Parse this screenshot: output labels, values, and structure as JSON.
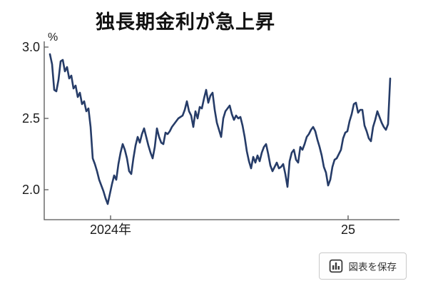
{
  "chart": {
    "title": "独長期金利が急上昇",
    "unit_label": "%"
  },
  "chart_data": {
    "type": "line",
    "title": "独長期金利が急上昇",
    "ylabel": "%",
    "line_color": "#263c68",
    "axis_color": "#555555",
    "grid": false,
    "legend": false,
    "axes": {
      "x_min": 2023.7207,
      "x_max": 2025.2162,
      "y_min": 1.79,
      "y_max": 3.04
    },
    "y_ticks": [
      {
        "value": 3.0,
        "label": "3.0"
      },
      {
        "value": 2.5,
        "label": "2.5"
      },
      {
        "value": 2.0,
        "label": "2.0"
      }
    ],
    "x_ticks": [
      {
        "value": 2024,
        "label": "2024年"
      },
      {
        "value": 2025,
        "label": "25"
      }
    ],
    "x_start": 2023.7447,
    "x_step": 0.009009,
    "values": [
      2.95,
      2.88,
      2.7,
      2.69,
      2.77,
      2.9,
      2.91,
      2.83,
      2.86,
      2.78,
      2.8,
      2.71,
      2.73,
      2.65,
      2.68,
      2.6,
      2.62,
      2.55,
      2.57,
      2.44,
      2.22,
      2.18,
      2.13,
      2.07,
      2.03,
      1.99,
      1.94,
      1.9,
      1.97,
      2.04,
      2.1,
      2.07,
      2.18,
      2.26,
      2.32,
      2.28,
      2.22,
      2.13,
      2.11,
      2.22,
      2.31,
      2.37,
      2.33,
      2.39,
      2.43,
      2.37,
      2.31,
      2.26,
      2.22,
      2.3,
      2.43,
      2.37,
      2.33,
      2.32,
      2.4,
      2.39,
      2.41,
      2.44,
      2.46,
      2.48,
      2.5,
      2.51,
      2.52,
      2.56,
      2.62,
      2.55,
      2.52,
      2.44,
      2.55,
      2.5,
      2.58,
      2.57,
      2.64,
      2.7,
      2.61,
      2.66,
      2.68,
      2.56,
      2.47,
      2.42,
      2.37,
      2.5,
      2.55,
      2.57,
      2.59,
      2.53,
      2.49,
      2.52,
      2.5,
      2.51,
      2.45,
      2.37,
      2.27,
      2.2,
      2.15,
      2.23,
      2.19,
      2.24,
      2.2,
      2.26,
      2.3,
      2.32,
      2.25,
      2.17,
      2.13,
      2.16,
      2.19,
      2.15,
      2.16,
      2.18,
      2.11,
      2.02,
      2.2,
      2.26,
      2.28,
      2.21,
      2.19,
      2.3,
      2.28,
      2.32,
      2.37,
      2.39,
      2.42,
      2.44,
      2.41,
      2.35,
      2.3,
      2.24,
      2.16,
      2.12,
      2.03,
      2.07,
      2.16,
      2.21,
      2.22,
      2.25,
      2.28,
      2.36,
      2.4,
      2.41,
      2.48,
      2.53,
      2.6,
      2.61,
      2.54,
      2.56,
      2.56,
      2.45,
      2.41,
      2.36,
      2.34,
      2.44,
      2.49,
      2.55,
      2.51,
      2.47,
      2.44,
      2.42,
      2.46,
      2.78
    ]
  },
  "save_button": {
    "label": "図表を保存",
    "icon": "bar-chart-icon"
  }
}
